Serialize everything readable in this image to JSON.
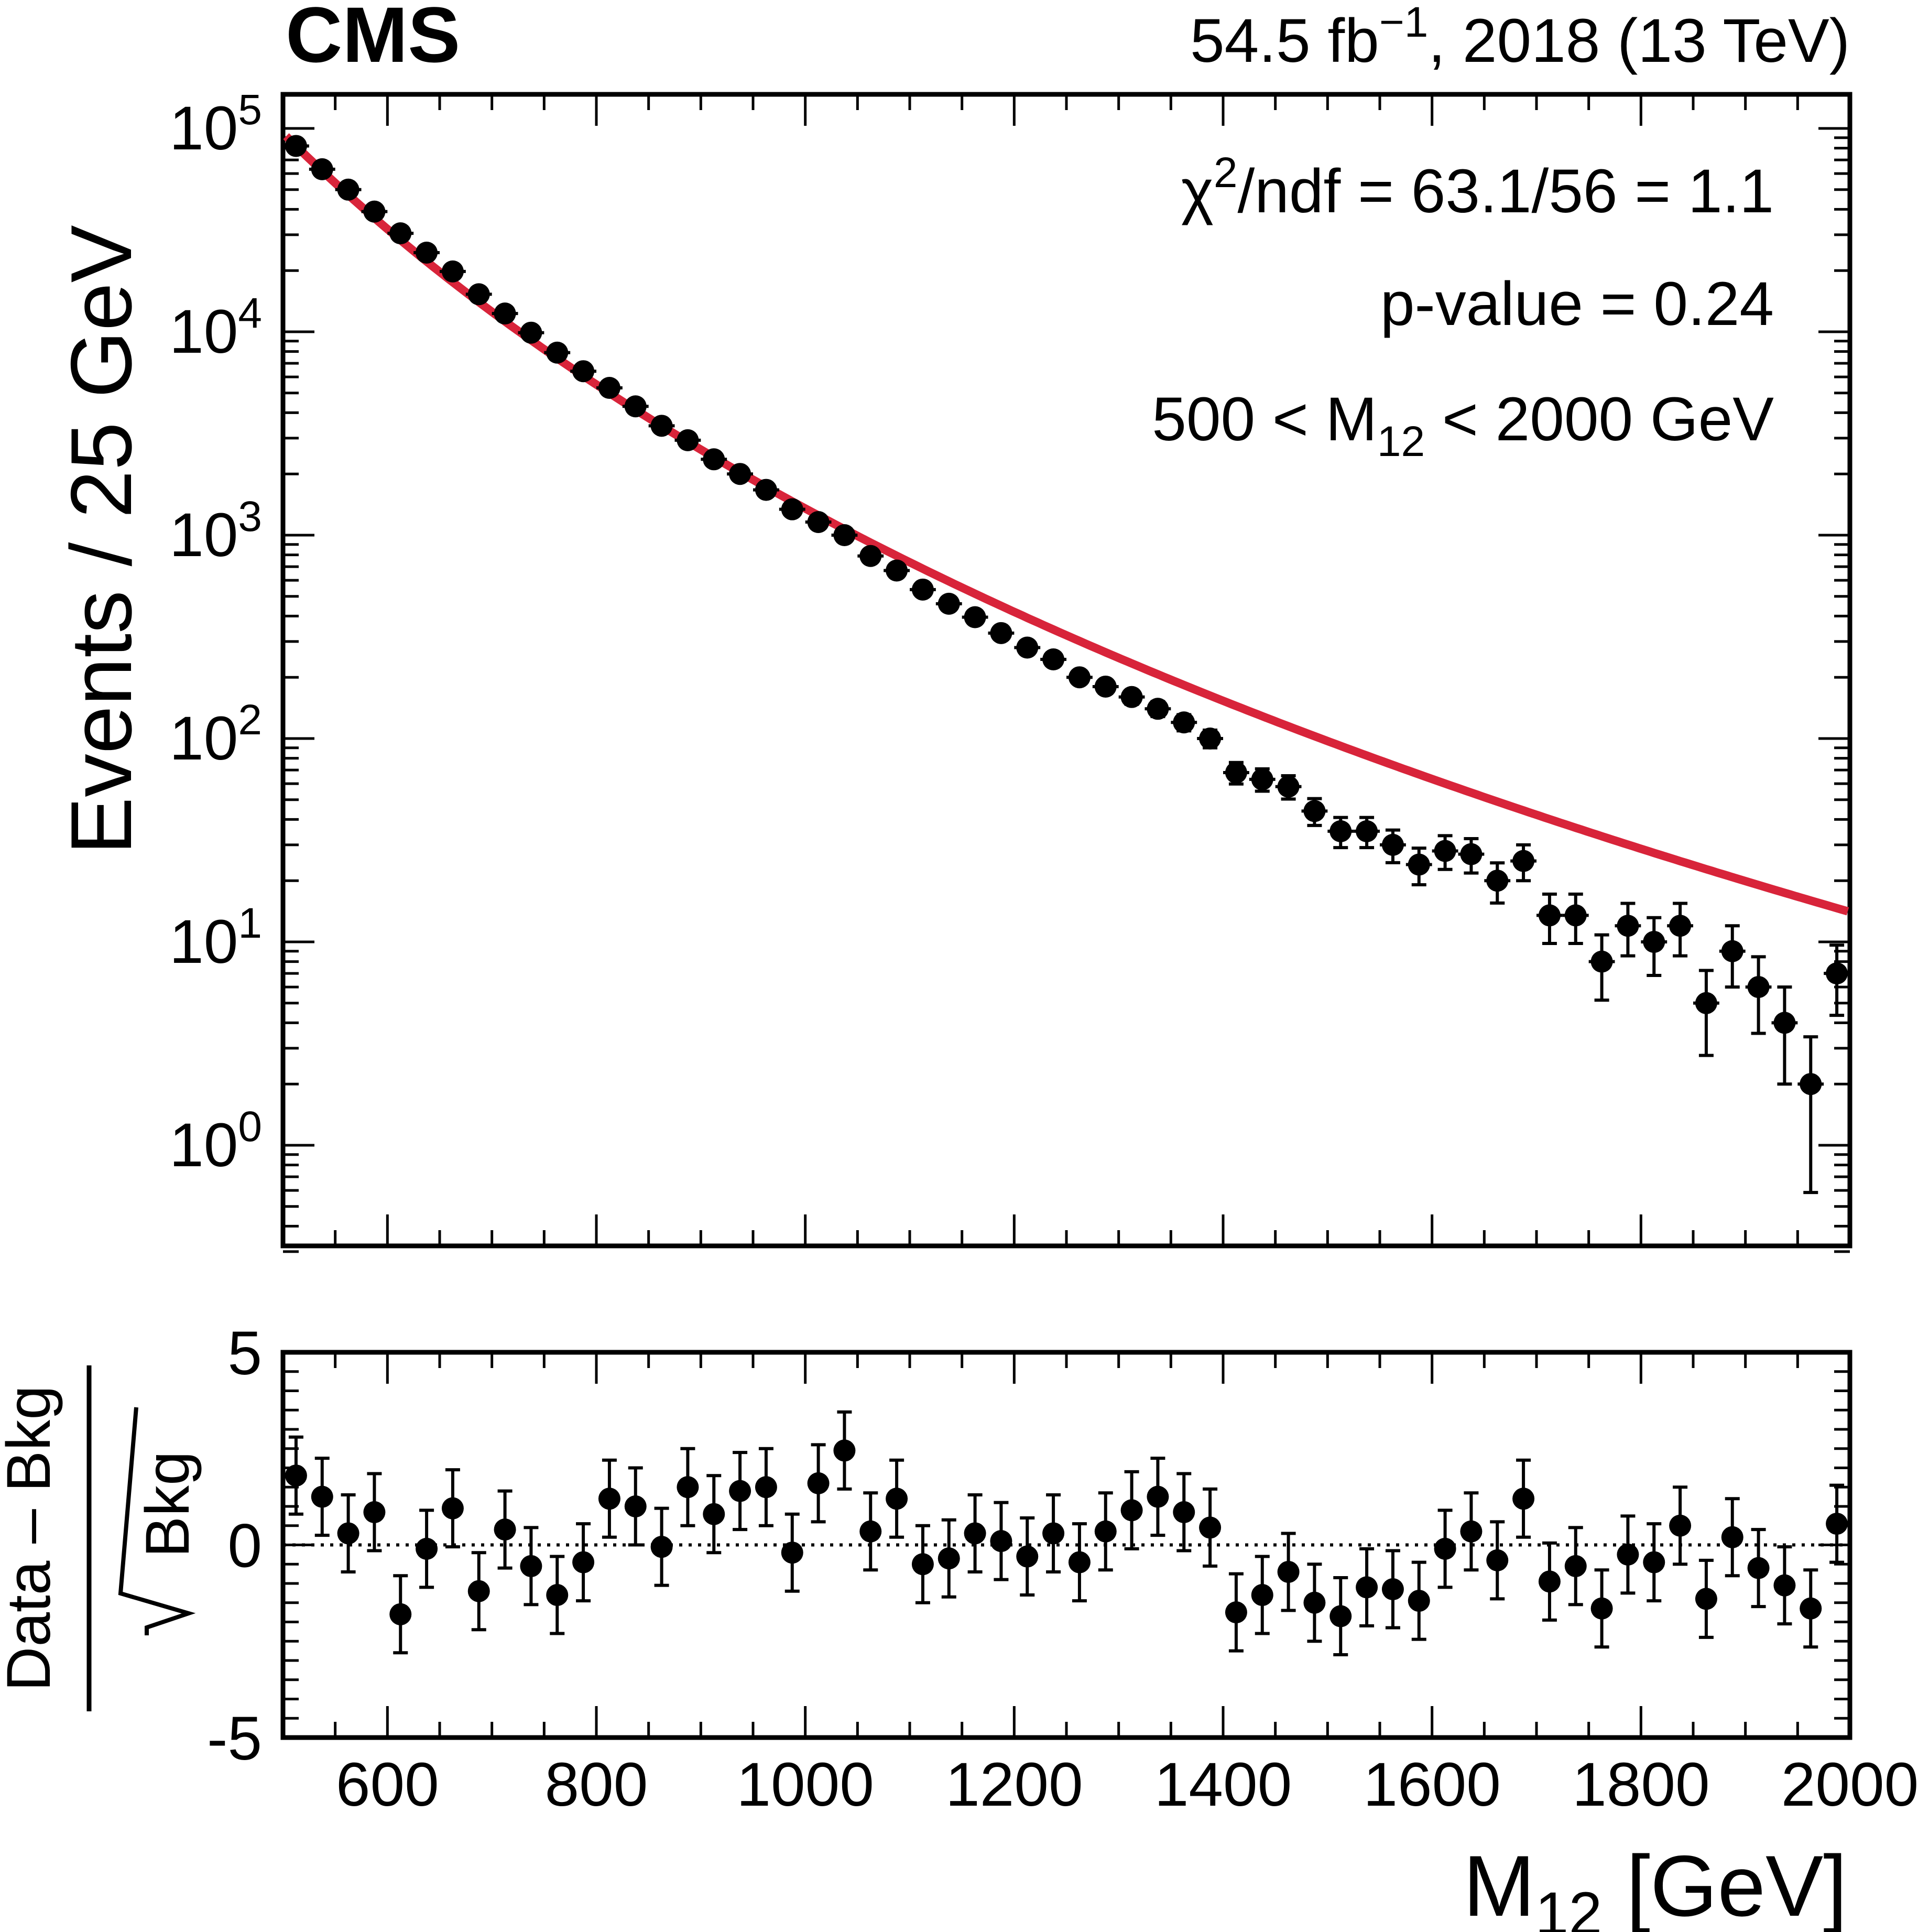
{
  "header": {
    "experiment": "CMS",
    "lumi_prefix": "54.5 fb",
    "lumi_exp": "−1",
    "lumi_suffix": ", 2018 (13 TeV)"
  },
  "annotations": {
    "chi2_pre": "χ",
    "chi2_exp": "2",
    "chi2_post": "/ndf = 63.1/56 = 1.1",
    "pvalue": "p-value = 0.24",
    "range_pre": "500 < M",
    "range_sub": "12",
    "range_post": " < 2000 GeV"
  },
  "colors": {
    "fit": "#d8243a",
    "data": "#000000"
  },
  "chart_data": [
    {
      "type": "scatter",
      "panel": "main",
      "ylabel": "Events / 25 GeV",
      "yscale": "log",
      "ylim": [
        0.3,
        160000
      ],
      "xlim": [
        500,
        2000
      ],
      "y_tick_labels": [
        {
          "base": "10",
          "exp": "0"
        },
        {
          "base": "10",
          "exp": "1"
        },
        {
          "base": "10",
          "exp": "2"
        },
        {
          "base": "10",
          "exp": "3"
        },
        {
          "base": "10",
          "exp": "4"
        },
        {
          "base": "10",
          "exp": "5"
        }
      ],
      "x": [
        512.5,
        537.5,
        562.5,
        587.5,
        612.5,
        637.5,
        662.5,
        687.5,
        712.5,
        737.5,
        762.5,
        787.5,
        812.5,
        837.5,
        862.5,
        887.5,
        912.5,
        937.5,
        962.5,
        987.5,
        1012.5,
        1037.5,
        1062.5,
        1087.5,
        1112.5,
        1137.5,
        1162.5,
        1187.5,
        1212.5,
        1237.5,
        1262.5,
        1287.5,
        1312.5,
        1337.5,
        1362.5,
        1387.5,
        1412.5,
        1437.5,
        1462.5,
        1487.5,
        1512.5,
        1537.5,
        1562.5,
        1587.5,
        1612.5,
        1637.5,
        1662.5,
        1687.5,
        1712.5,
        1737.5,
        1762.5,
        1787.5,
        1812.5,
        1837.5,
        1862.5,
        1887.5,
        1912.5,
        1937.5,
        1962.5,
        1987.5
      ],
      "series": [
        {
          "name": "Data",
          "values": [
            82000,
            63000,
            50000,
            39000,
            30500,
            24500,
            19800,
            15300,
            12300,
            9900,
            7900,
            6400,
            5300,
            4300,
            3450,
            2930,
            2360,
            2000,
            1670,
            1340,
            1160,
            1000,
            790,
            670,
            540,
            460,
            395,
            330,
            280,
            245,
            200,
            180,
            160,
            140,
            120,
            100,
            68,
            63,
            58,
            44,
            35,
            35,
            30,
            24,
            28,
            27,
            20,
            25,
            13.5,
            13.5,
            8,
            12,
            10,
            12,
            5,
            9,
            6,
            4,
            2,
            7
          ]
        },
        {
          "name": "Fit",
          "type": "line",
          "function": "y = 82000 * (x/512.5)^-(5.92 + 0.33*ln(x/512.5))"
        }
      ]
    },
    {
      "type": "scatter",
      "panel": "ratio",
      "xlabel_pre": "M",
      "xlabel_sub": "12",
      "xlabel_post": " [GeV]",
      "ylabel_top": "Data – Bkg",
      "ylabel_bottom": "Bkg",
      "ylim": [
        -5,
        5
      ],
      "xlim": [
        500,
        2000
      ],
      "y_tick_labels": [
        "5",
        "0",
        "-5"
      ],
      "x_tick_labels": [
        "600",
        "800",
        "1000",
        "1200",
        "1400",
        "1600",
        "1800",
        "2000"
      ],
      "x": [
        512.5,
        537.5,
        562.5,
        587.5,
        612.5,
        637.5,
        662.5,
        687.5,
        712.5,
        737.5,
        762.5,
        787.5,
        812.5,
        837.5,
        862.5,
        887.5,
        912.5,
        937.5,
        962.5,
        987.5,
        1012.5,
        1037.5,
        1062.5,
        1087.5,
        1112.5,
        1137.5,
        1162.5,
        1187.5,
        1212.5,
        1237.5,
        1262.5,
        1287.5,
        1312.5,
        1337.5,
        1362.5,
        1387.5,
        1412.5,
        1437.5,
        1462.5,
        1487.5,
        1512.5,
        1537.5,
        1562.5,
        1587.5,
        1612.5,
        1637.5,
        1662.5,
        1687.5,
        1712.5,
        1737.5,
        1762.5,
        1787.5,
        1812.5,
        1837.5,
        1862.5,
        1887.5,
        1912.5,
        1937.5,
        1962.5,
        1987.5
      ],
      "series": [
        {
          "name": "(Data - Bkg)/sqrt(Bkg)",
          "values": [
            1.8,
            1.25,
            0.3,
            0.85,
            -1.8,
            -0.1,
            0.95,
            -1.2,
            0.4,
            -0.55,
            -1.3,
            -0.45,
            1.2,
            1.0,
            -0.05,
            1.5,
            0.8,
            1.4,
            1.5,
            -0.2,
            1.6,
            2.45,
            0.35,
            1.2,
            -0.5,
            -0.35,
            0.3,
            0.1,
            -0.3,
            0.3,
            -0.45,
            0.35,
            0.9,
            1.25,
            0.85,
            0.45,
            -1.75,
            -1.3,
            -0.7,
            -1.5,
            -1.85,
            -1.1,
            -1.15,
            -1.45,
            -0.1,
            0.35,
            -0.4,
            1.2,
            -0.95,
            -0.55,
            -1.65,
            -0.25,
            -0.45,
            0.5,
            -1.4,
            0.2,
            -0.6,
            -1.05,
            -1.65,
            0.55
          ]
        }
      ]
    }
  ]
}
